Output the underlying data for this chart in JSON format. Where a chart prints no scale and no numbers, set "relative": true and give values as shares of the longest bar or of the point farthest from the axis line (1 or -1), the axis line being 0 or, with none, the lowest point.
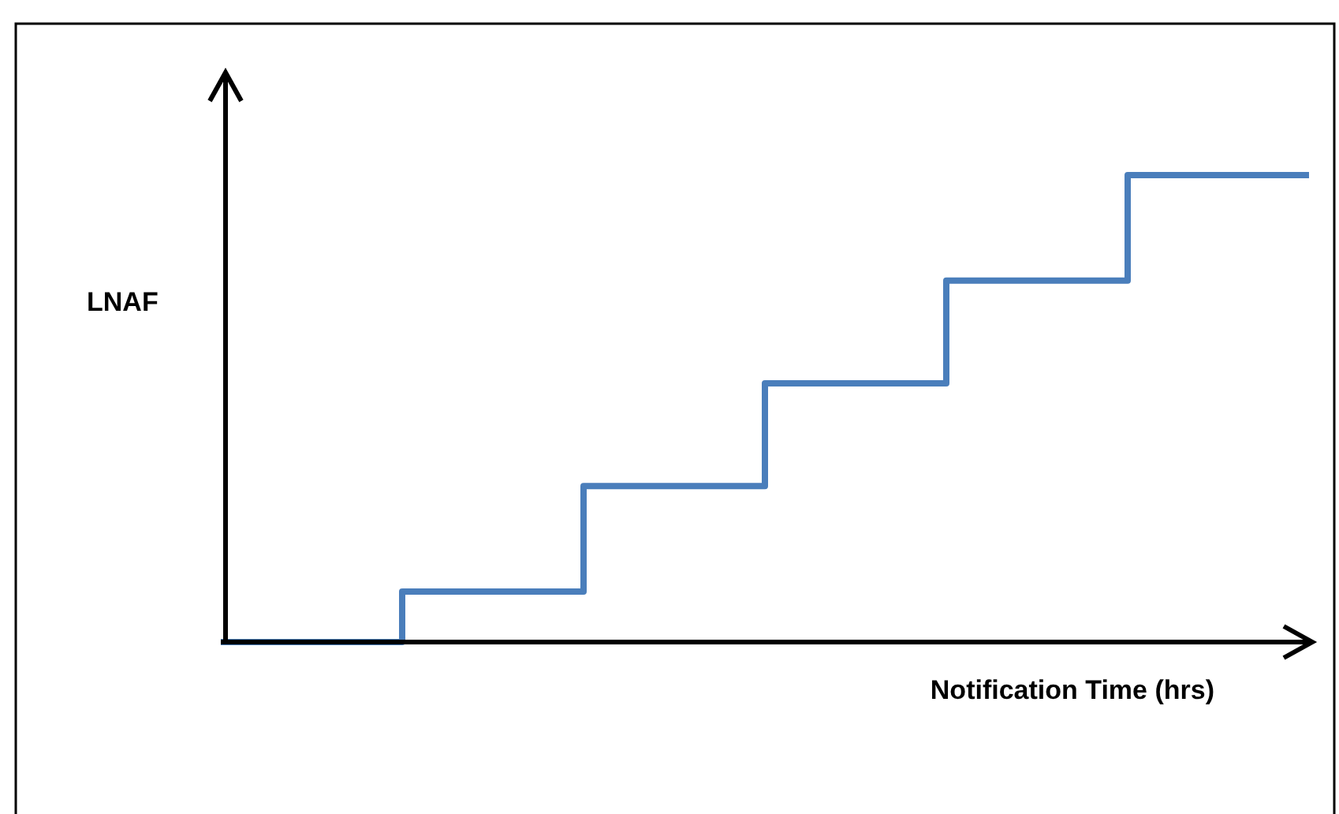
{
  "chart_data": {
    "type": "step",
    "xlabel": "Notification Time (hrs)",
    "ylabel": "LNAF",
    "relative": true,
    "categories": [
      null,
      null,
      null,
      null,
      null,
      null,
      null
    ],
    "series": [
      {
        "color": "#4a7ebb",
        "values": [
          0,
          0.108,
          0.334,
          0.554,
          0.774,
          1,
          1
        ]
      }
    ]
  }
}
